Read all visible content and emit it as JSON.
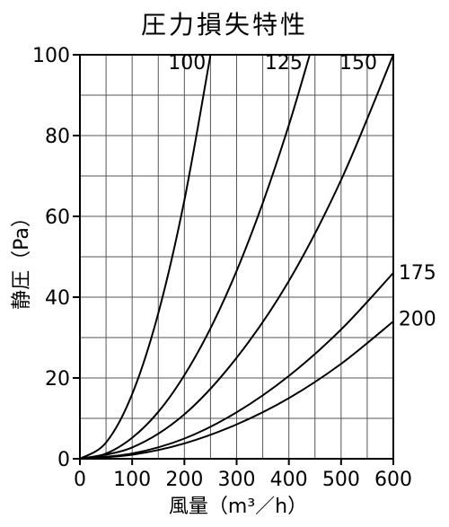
{
  "chart_data": {
    "type": "line",
    "title": "圧力損失特性",
    "xlabel": "風量（m³／h）",
    "ylabel": "静圧（Pa）",
    "xlim": [
      0,
      600
    ],
    "ylim": [
      0,
      100
    ],
    "xticks": [
      0,
      100,
      200,
      300,
      400,
      500,
      600
    ],
    "yticks": [
      0,
      20,
      40,
      60,
      80,
      100
    ],
    "grid": true,
    "series": [
      {
        "name": "100",
        "x": [
          0,
          50,
          100,
          150,
          200,
          250
        ],
        "y": [
          0,
          4,
          16,
          36,
          64,
          100
        ]
      },
      {
        "name": "125",
        "x": [
          0,
          50,
          100,
          150,
          200,
          250,
          300,
          350,
          400,
          440
        ],
        "y": [
          0,
          1.3,
          5.2,
          11.6,
          20.7,
          32.3,
          46.5,
          63.3,
          82.6,
          100
        ]
      },
      {
        "name": "150",
        "x": [
          0,
          100,
          200,
          300,
          400,
          500,
          600
        ],
        "y": [
          0,
          2.8,
          11,
          25,
          44,
          69,
          100
        ]
      },
      {
        "name": "175",
        "x": [
          0,
          100,
          200,
          300,
          400,
          500,
          600
        ],
        "y": [
          0,
          1.3,
          5,
          11.5,
          20.5,
          32,
          46
        ]
      },
      {
        "name": "200",
        "x": [
          0,
          100,
          200,
          300,
          400,
          500,
          600
        ],
        "y": [
          0,
          1,
          3.8,
          8.5,
          15,
          23.5,
          34
        ]
      }
    ]
  }
}
